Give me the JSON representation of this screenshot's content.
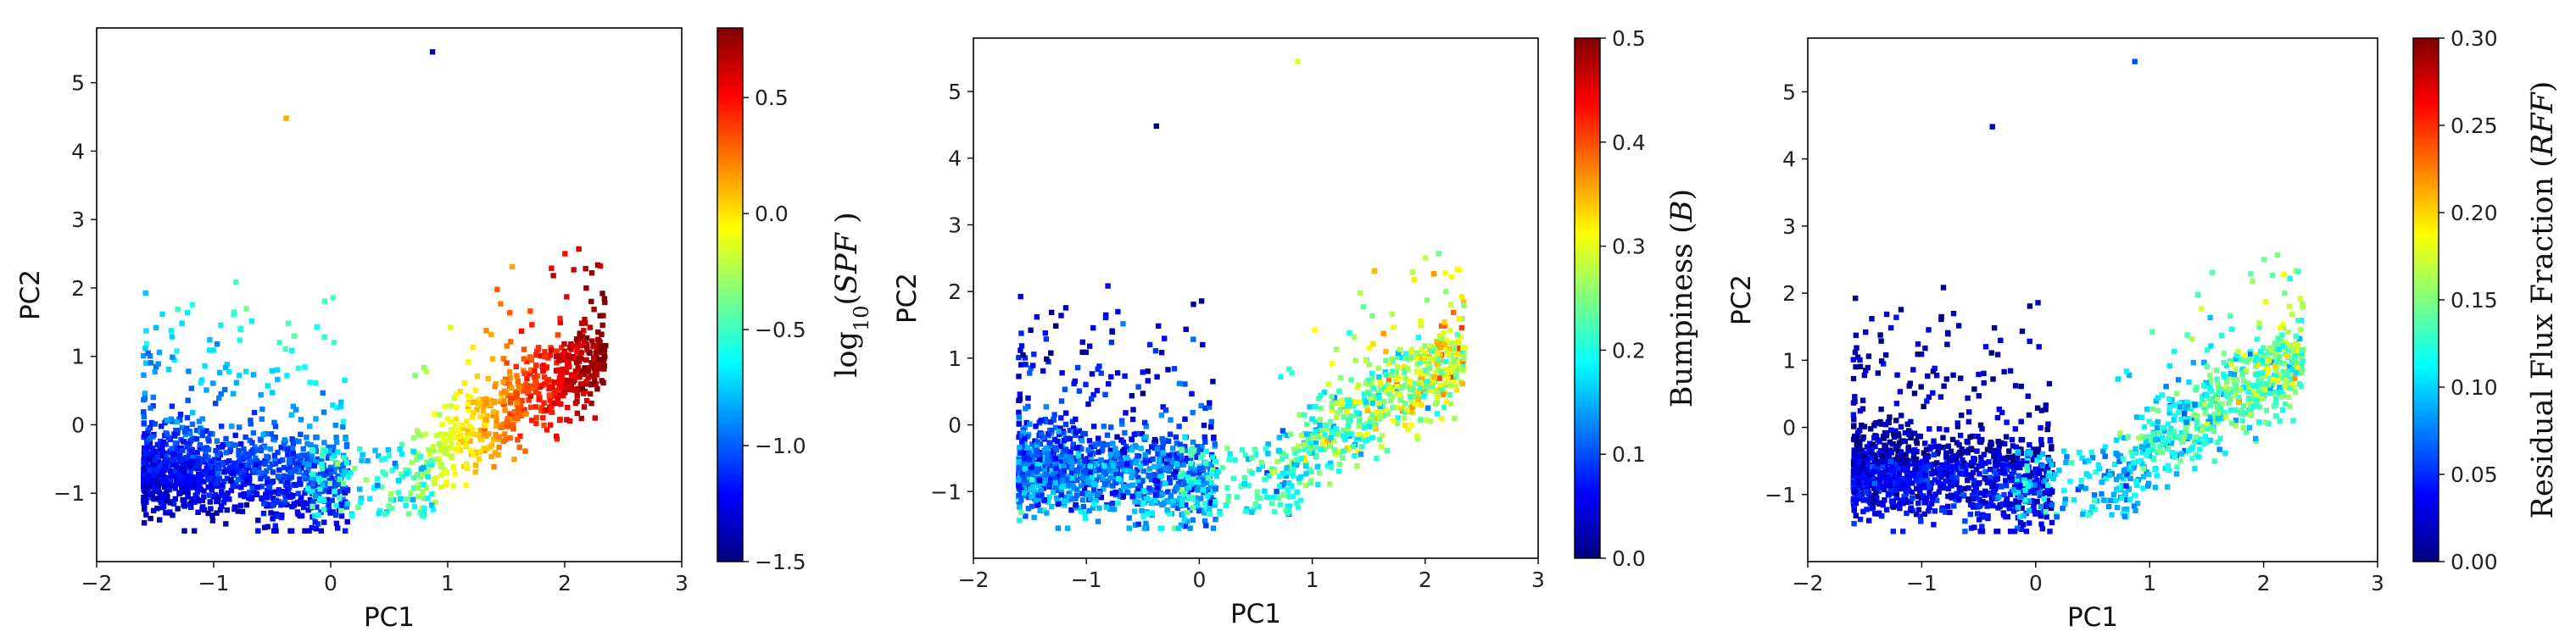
{
  "colormap": [
    "#00007f",
    "#0000ff",
    "#007fff",
    "#00ffff",
    "#7fff7f",
    "#ffff00",
    "#ff7f00",
    "#ff0000",
    "#7f0000"
  ],
  "chart_data": [
    {
      "type": "scatter",
      "title": "",
      "xlabel": "PC1",
      "ylabel": "PC2",
      "xlim": [
        -2,
        3
      ],
      "ylim": [
        -2,
        5.8
      ],
      "xticks": [
        -2,
        -1,
        0,
        1,
        2,
        3
      ],
      "yticks": [
        -1,
        0,
        1,
        2,
        3,
        4,
        5
      ],
      "colorbar": {
        "label_pre": "log",
        "label_sub": "10",
        "label_post": "(SPF )",
        "range": [
          -1.5,
          0.8
        ],
        "ticks": [
          -1.5,
          -1.0,
          -0.5,
          0.0,
          0.5
        ],
        "tick_labels": [
          "−1.5",
          "−1.0",
          "−0.5",
          "0.0",
          "0.5"
        ]
      },
      "colored_by": "spf"
    },
    {
      "type": "scatter",
      "title": "",
      "xlabel": "PC1",
      "ylabel": "PC2",
      "xlim": [
        -2,
        3
      ],
      "ylim": [
        -2,
        5.8
      ],
      "xticks": [
        -2,
        -1,
        0,
        1,
        2,
        3
      ],
      "yticks": [
        -1,
        0,
        1,
        2,
        3,
        4,
        5
      ],
      "colorbar": {
        "label_pre": "Bumpiness (",
        "label_sub": "",
        "label_post": "B)",
        "range": [
          0.0,
          0.5
        ],
        "ticks": [
          0.0,
          0.1,
          0.2,
          0.3,
          0.4,
          0.5
        ],
        "tick_labels": [
          "0.0",
          "0.1",
          "0.2",
          "0.3",
          "0.4",
          "0.5"
        ]
      },
      "colored_by": "bumpiness"
    },
    {
      "type": "scatter",
      "title": "",
      "xlabel": "PC1",
      "ylabel": "PC2",
      "xlim": [
        -2,
        3
      ],
      "ylim": [
        -2,
        5.8
      ],
      "xticks": [
        -2,
        -1,
        0,
        1,
        2,
        3
      ],
      "yticks": [
        -1,
        0,
        1,
        2,
        3,
        4,
        5
      ],
      "colorbar": {
        "label_pre": "Residual Flux Fraction (",
        "label_sub": "",
        "label_post": "RFF)",
        "range": [
          0.0,
          0.3
        ],
        "ticks": [
          0.0,
          0.05,
          0.1,
          0.15,
          0.2,
          0.25,
          0.3
        ],
        "tick_labels": [
          "0.00",
          "0.05",
          "0.10",
          "0.15",
          "0.20",
          "0.25",
          "0.30"
        ]
      },
      "colored_by": "rff"
    }
  ]
}
